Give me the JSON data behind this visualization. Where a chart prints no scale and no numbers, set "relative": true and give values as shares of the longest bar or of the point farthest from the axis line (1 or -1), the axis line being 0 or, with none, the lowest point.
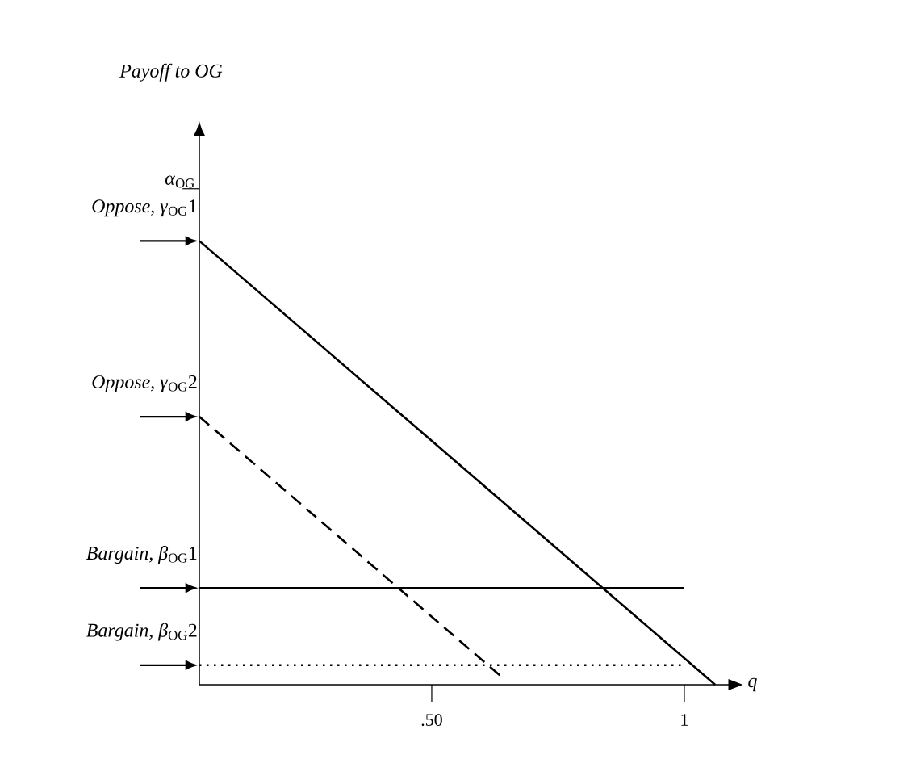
{
  "chart_data": {
    "type": "line",
    "relative": true,
    "xlabel": "q",
    "xlim": [
      0.04,
      1.09
    ],
    "xticks": [
      {
        "value": 0.5,
        "label": ".50"
      },
      1
    ],
    "series": [
      {
        "color": "#000000",
        "line_style": "solid",
        "x": [
          0.04,
          1.061
        ],
        "values": [
          1,
          0
        ]
      },
      {
        "color": "#000000",
        "line_style": "dashed",
        "x": [
          0.04,
          0.64
        ],
        "values": [
          0.604,
          0.016
        ]
      },
      {
        "color": "#000000",
        "line_style": "solid",
        "x": [
          0.04,
          1.0
        ],
        "values": [
          0.218,
          0.218
        ]
      },
      {
        "color": "#000000",
        "line_style": "dotted",
        "x": [
          0.04,
          1.0
        ],
        "values": [
          0.044,
          0.044
        ]
      }
    ],
    "annotations": [
      "*Payoff to OG*",
      "*α*$_{OG}$",
      "*Oppose, γ*$_{OG}$1",
      "*Oppose, γ*$_{OG}$2",
      "*Bargain, β*$_{OG}$1",
      "*Bargain, β*$_{OG}$2"
    ]
  }
}
